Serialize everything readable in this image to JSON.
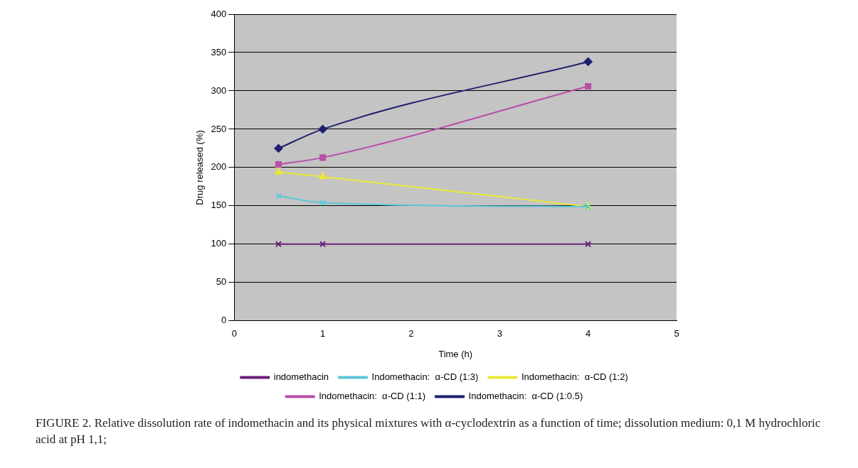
{
  "chart_data": {
    "type": "line",
    "xlabel": "Time (h)",
    "ylabel": "Drug released (%)",
    "x": [
      0.5,
      1,
      4
    ],
    "series": [
      {
        "name": "Indomethacin:  α-CD (1:0.5)",
        "color": "#1f1f6e",
        "values": [
          225,
          250,
          338
        ],
        "marker": "diamond"
      },
      {
        "name": "Indomethacin:  α-CD (1:1)",
        "color": "#b84fa8",
        "values": [
          204,
          213,
          306
        ],
        "marker": "square"
      },
      {
        "name": "Indomethacin:  α-CD (1:2)",
        "color": "#e8e83a",
        "values": [
          194,
          188,
          149
        ],
        "marker": "triangle"
      },
      {
        "name": "Indomethacin:  α-CD (1:3)",
        "color": "#5cc8d8",
        "values": [
          163,
          154,
          149
        ],
        "marker": "cross"
      },
      {
        "name": "indomethacin",
        "color": "#6a1f7a",
        "values": [
          100,
          100,
          100
        ],
        "marker": "cross"
      }
    ],
    "xlim": [
      0,
      5
    ],
    "xticks": [
      0,
      1,
      2,
      3,
      4,
      5
    ],
    "ylim": [
      0,
      400
    ],
    "yticks": [
      0,
      50,
      100,
      150,
      200,
      250,
      300,
      350,
      400
    ],
    "grid": "y",
    "legend": "bottom",
    "line_style": "solid",
    "annotations": [
      "FIGURE 2.  Relative dissolution rate of indomethacin and its physical mixtures with α-cyclodextrin as a function of time; dissolution medium: 0,1 M hydrochloric acid at pH 1,1;"
    ]
  }
}
